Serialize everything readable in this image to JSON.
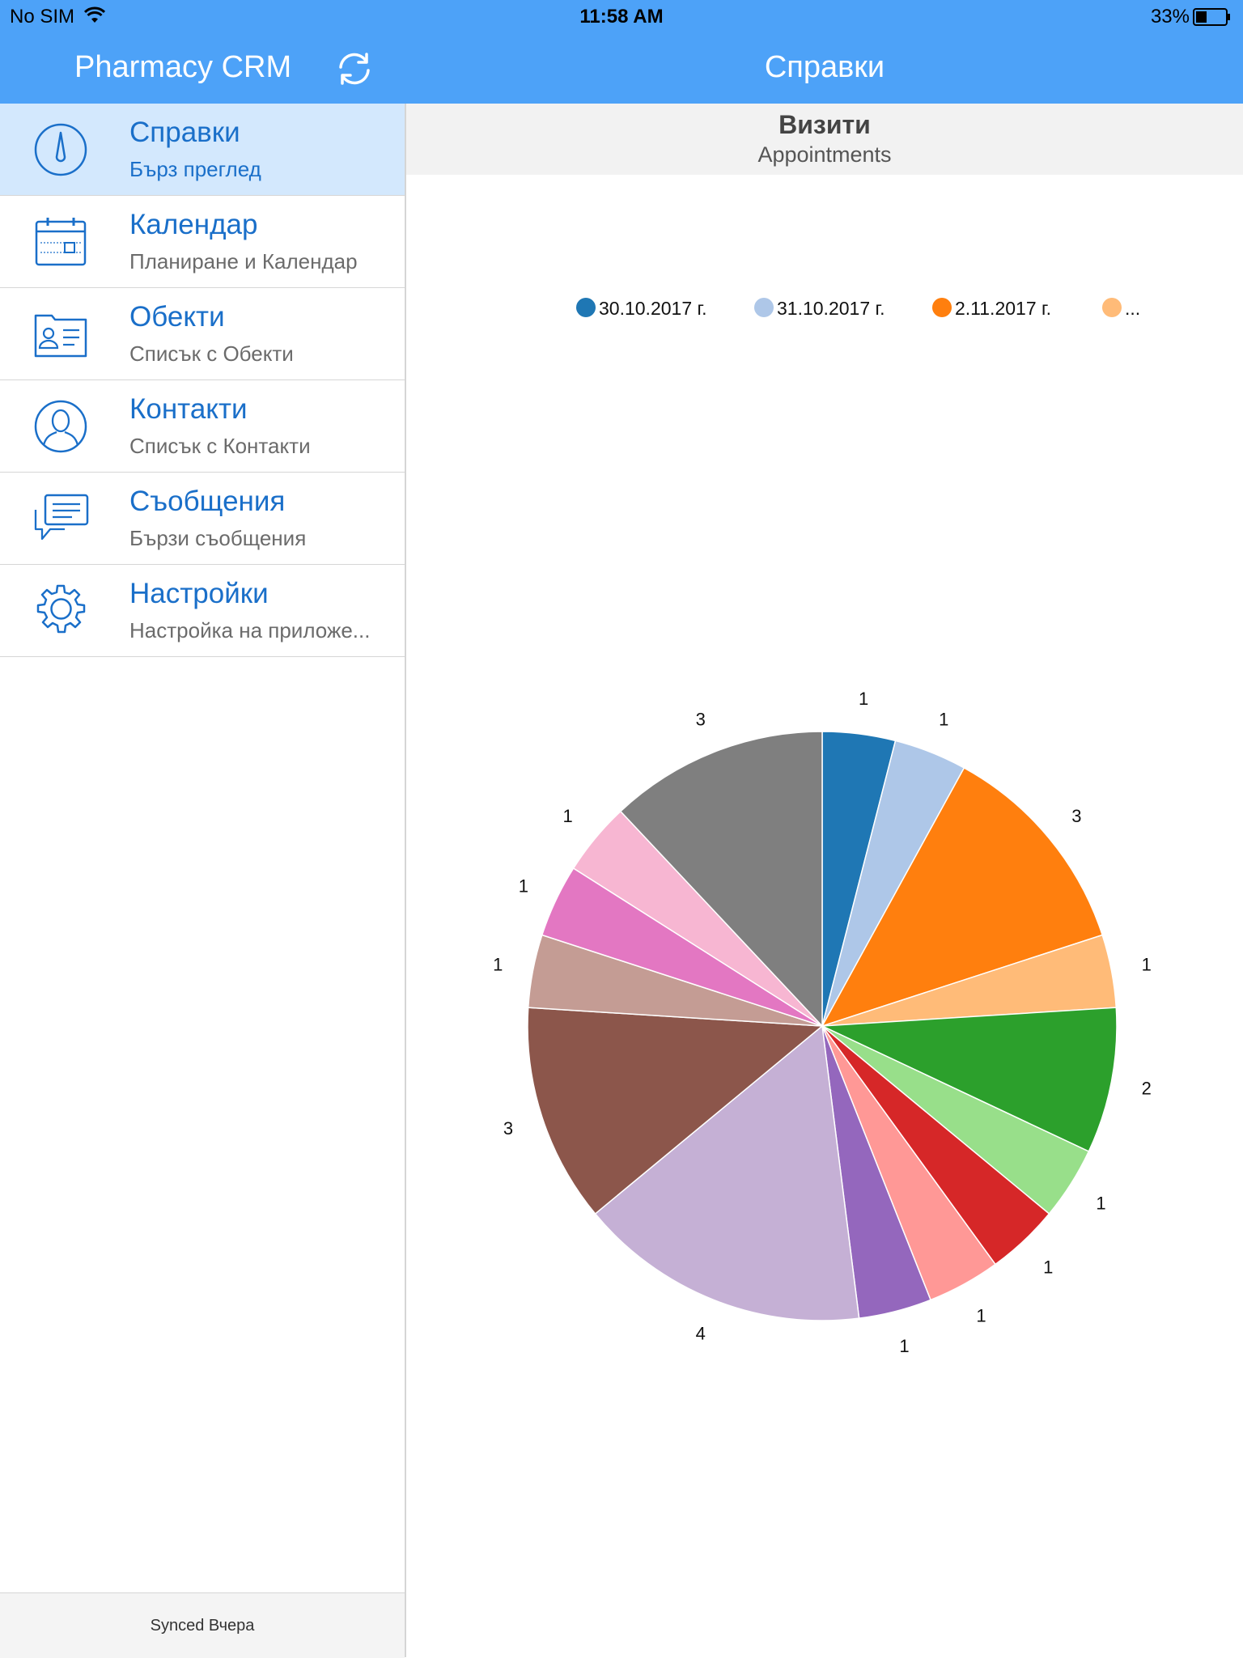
{
  "status_bar": {
    "carrier": "No SIM",
    "time": "11:58 AM",
    "battery": "33%"
  },
  "nav": {
    "app_title": "Pharmacy CRM",
    "page_title": "Справки"
  },
  "sidebar": {
    "items": [
      {
        "label": "Справки",
        "sub": "Бърз преглед",
        "icon": "gauge-icon",
        "active": true
      },
      {
        "label": "Календар",
        "sub": "Планиране и Календар",
        "icon": "calendar-icon",
        "active": false
      },
      {
        "label": "Обекти",
        "sub": "Списък с Обекти",
        "icon": "contact-card-icon",
        "active": false
      },
      {
        "label": "Контакти",
        "sub": "Списък с Контакти",
        "icon": "person-icon",
        "active": false
      },
      {
        "label": "Съобщения",
        "sub": "Бързи съобщения",
        "icon": "chat-icon",
        "active": false
      },
      {
        "label": "Настройки",
        "sub": "Настройка на приложе...",
        "icon": "gear-icon",
        "active": false
      }
    ],
    "footer": "Synced Вчера"
  },
  "colors": {
    "accent": "#4da2f8",
    "link": "#1a6fc9",
    "active_row": "#d3e8fd"
  },
  "chart_data": {
    "type": "pie",
    "title": "Визити",
    "subtitle": "Appointments",
    "legend": [
      {
        "label": "30.10.2017 г.",
        "color": "#1f77b4"
      },
      {
        "label": "31.10.2017 г.",
        "color": "#aec7e8"
      },
      {
        "label": "2.11.2017 г.",
        "color": "#ff7f0e"
      },
      {
        "label": "...",
        "color": "#ffbb78"
      }
    ],
    "legend_position": "top",
    "values": [
      1,
      1,
      3,
      1,
      2,
      1,
      1,
      1,
      1,
      4,
      3,
      1,
      1,
      1,
      3
    ],
    "colors": [
      "#1f77b4",
      "#aec7e8",
      "#ff7f0e",
      "#ffbb78",
      "#2ca02c",
      "#98df8a",
      "#d62728",
      "#ff9896",
      "#9467bd",
      "#c5b0d5",
      "#8c564b",
      "#c49c94",
      "#e377c2",
      "#f7b6d2",
      "#7f7f7f"
    ]
  }
}
